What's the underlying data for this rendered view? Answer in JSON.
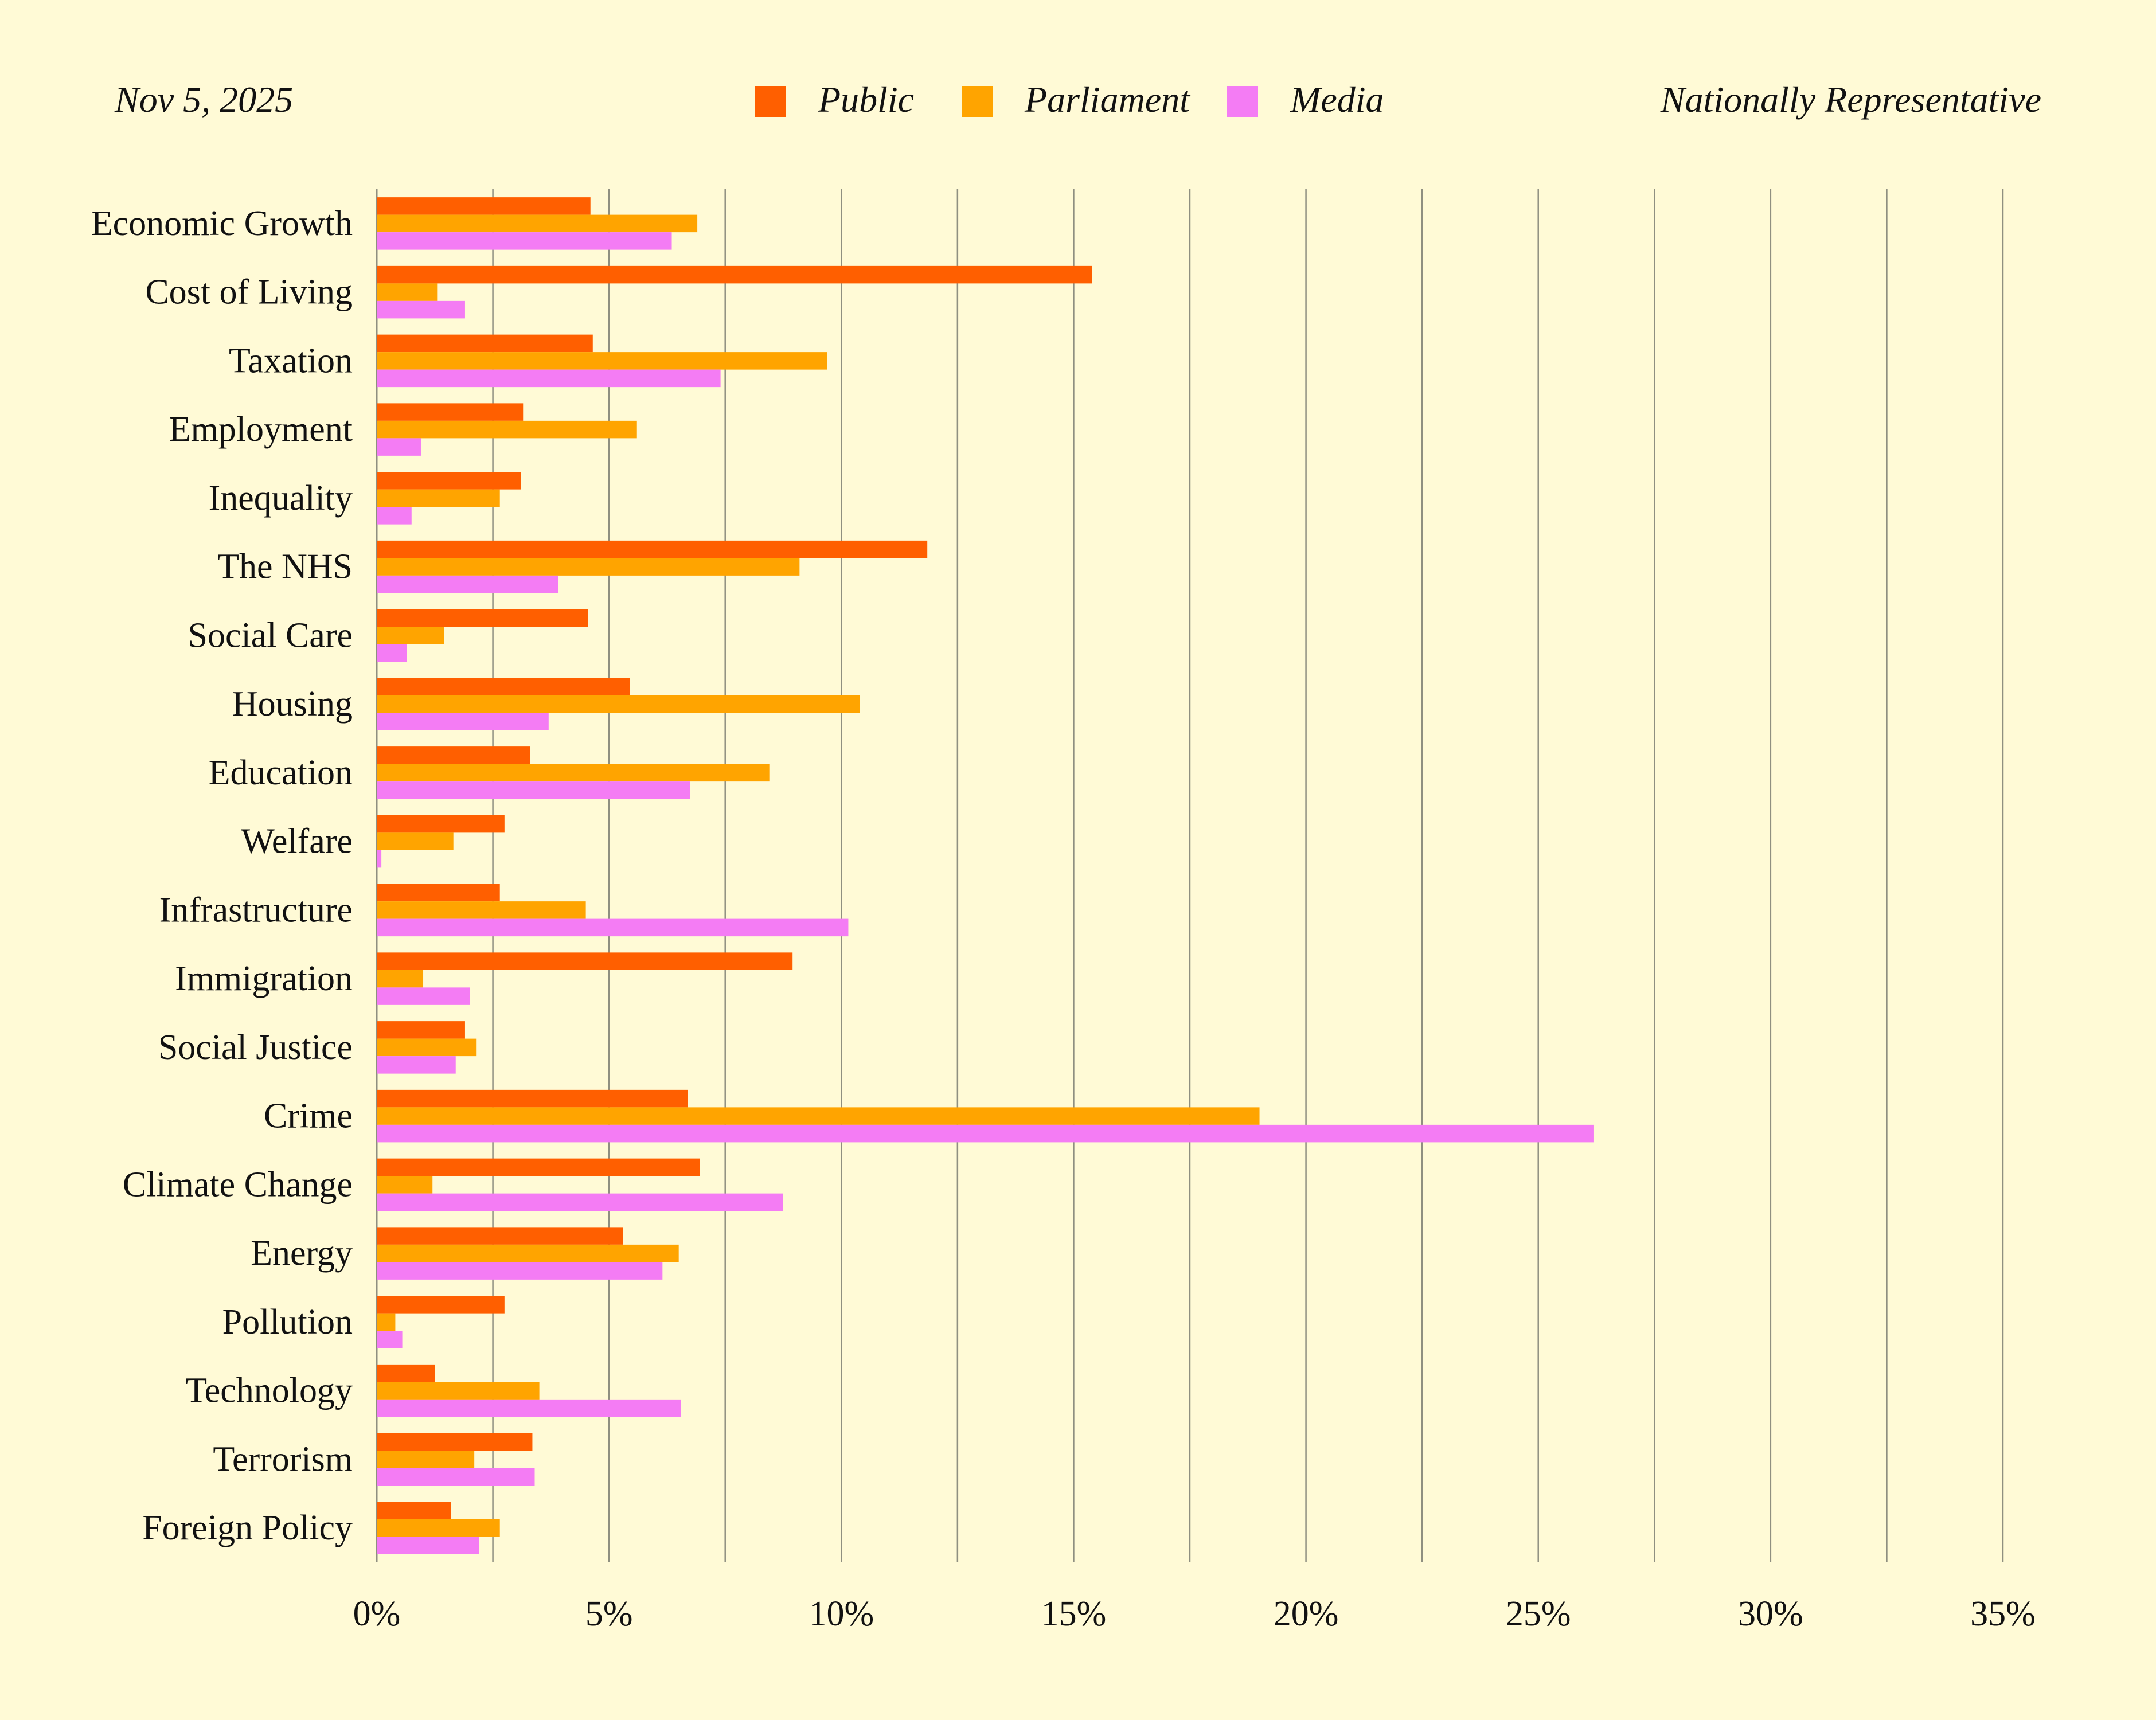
{
  "header": {
    "date": "Nov 5, 2025",
    "sample": "Nationally Representative"
  },
  "chart_data": {
    "type": "bar",
    "orientation": "horizontal",
    "title": "",
    "xlabel": "",
    "ylabel": "",
    "xlim": [
      0,
      35
    ],
    "x_tick_step": 2.5,
    "x_tick_labels": [
      "0%",
      "5%",
      "10%",
      "15%",
      "20%",
      "25%",
      "30%",
      "35%"
    ],
    "x_tick_values": [
      0,
      5,
      10,
      15,
      20,
      25,
      30,
      35
    ],
    "grid": true,
    "legend_position": "top-center",
    "categories": [
      "Economic Growth",
      "Cost of Living",
      "Taxation",
      "Employment",
      "Inequality",
      "The NHS",
      "Social Care",
      "Housing",
      "Education",
      "Welfare",
      "Infrastructure",
      "Immigration",
      "Social Justice",
      "Crime",
      "Climate Change",
      "Energy",
      "Pollution",
      "Technology",
      "Terrorism",
      "Foreign Policy"
    ],
    "series": [
      {
        "name": "Public",
        "color": "#FF5F00",
        "values": [
          4.6,
          15.4,
          4.65,
          3.15,
          3.1,
          11.85,
          4.55,
          5.45,
          3.3,
          2.75,
          2.65,
          8.95,
          1.9,
          6.7,
          6.95,
          5.3,
          2.75,
          1.25,
          3.35,
          1.6
        ]
      },
      {
        "name": "Parliament",
        "color": "#FFA400",
        "values": [
          6.9,
          1.3,
          9.7,
          5.6,
          2.65,
          9.1,
          1.45,
          10.4,
          8.45,
          1.65,
          4.5,
          1.0,
          2.15,
          19.0,
          1.2,
          6.5,
          0.4,
          3.5,
          2.1,
          2.65
        ]
      },
      {
        "name": "Media",
        "color": "#F47CF4",
        "values": [
          6.35,
          1.9,
          7.4,
          0.95,
          0.75,
          3.9,
          0.65,
          3.7,
          6.75,
          0.1,
          10.15,
          2.0,
          1.7,
          26.2,
          8.75,
          6.15,
          0.55,
          6.55,
          3.4,
          2.2
        ]
      }
    ]
  }
}
